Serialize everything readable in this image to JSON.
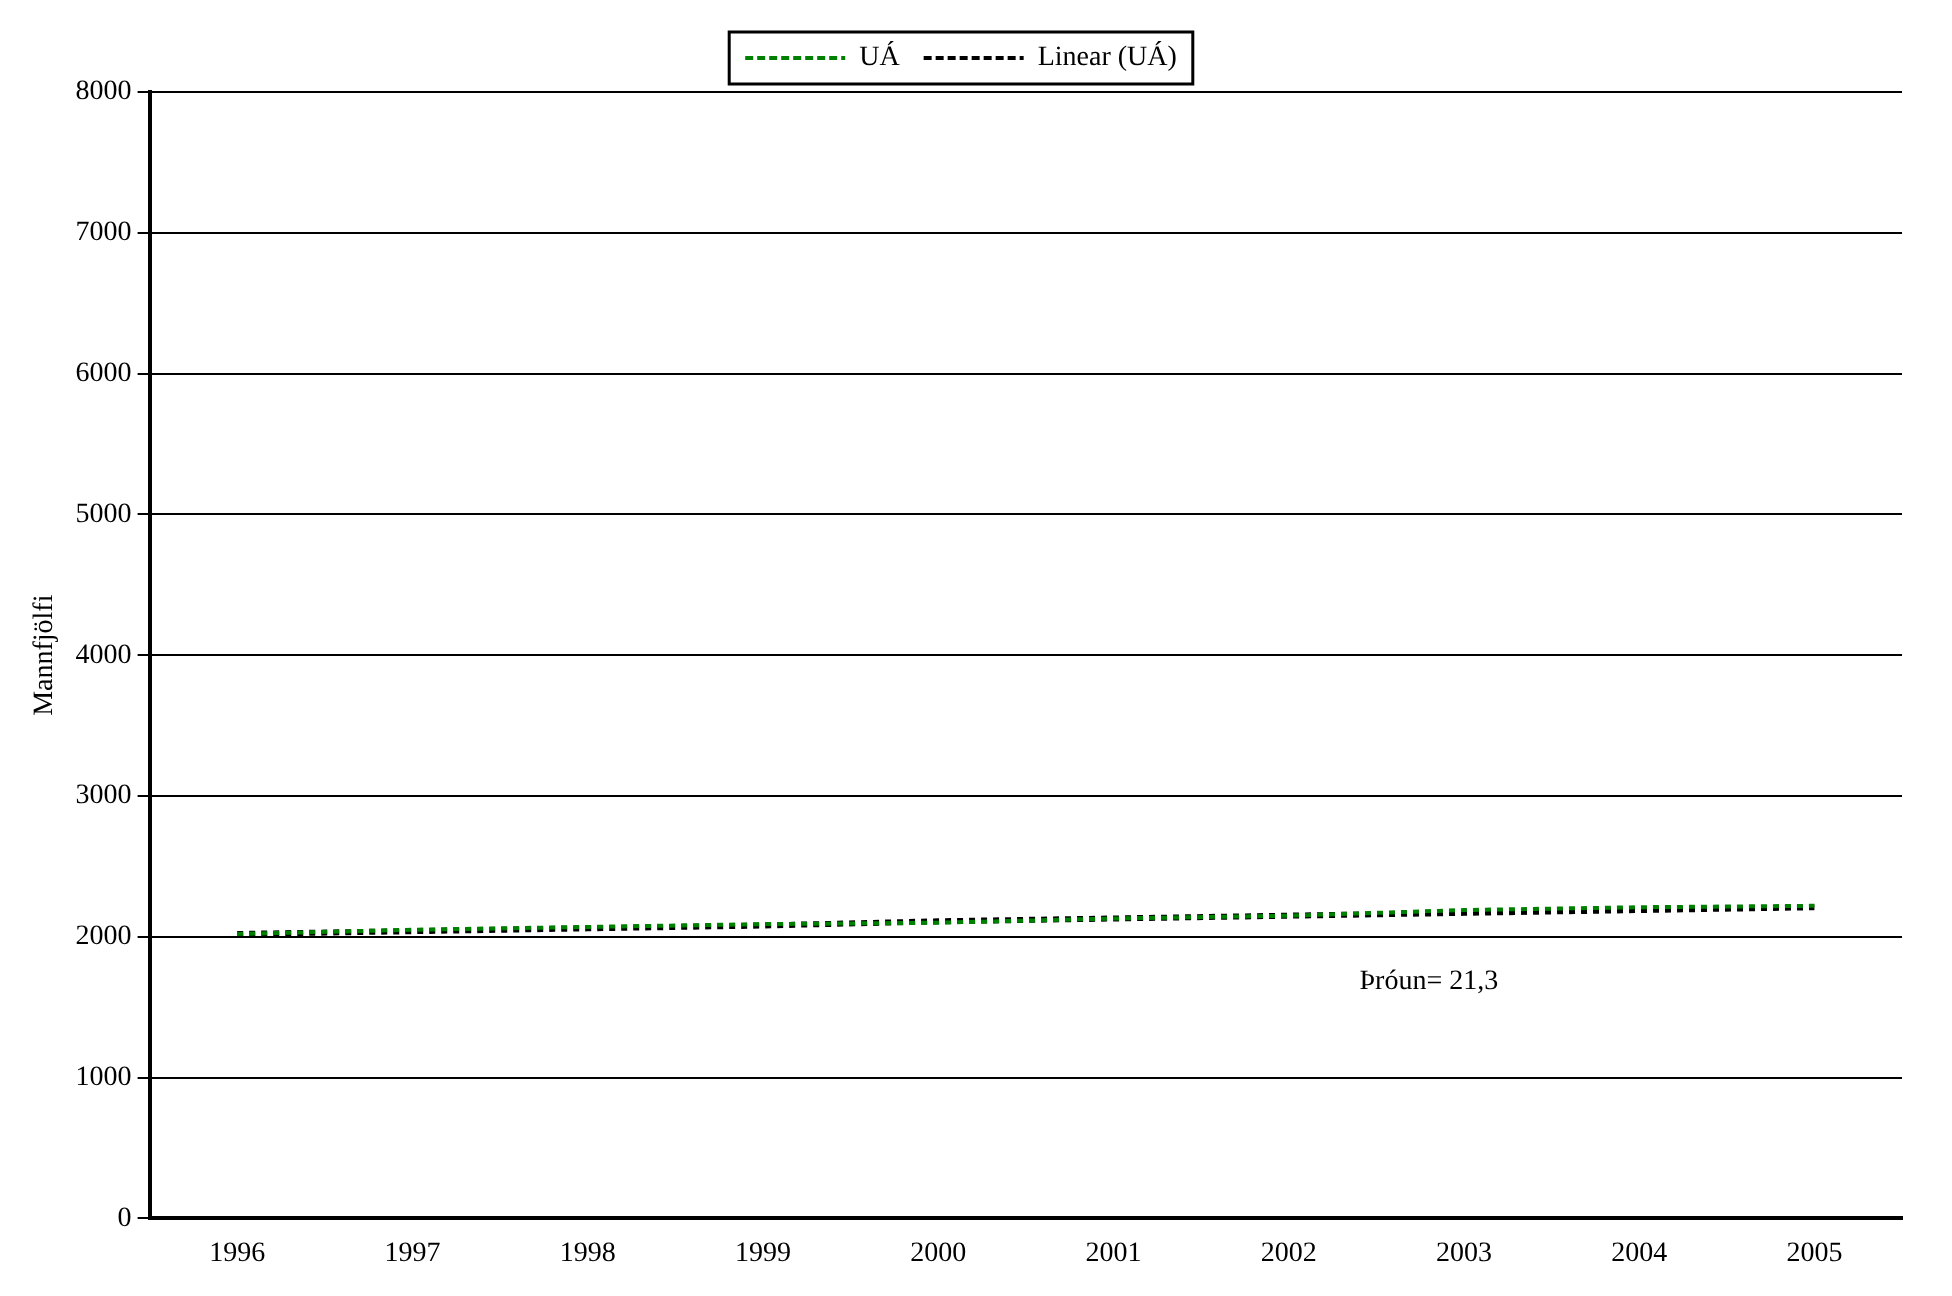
{
  "chart_data": {
    "type": "line",
    "ylabel": "Mannfjölfi",
    "categories": [
      "1996",
      "1997",
      "1998",
      "1999",
      "2000",
      "2001",
      "2002",
      "2003",
      "2004",
      "2005"
    ],
    "series": [
      {
        "name": "UÁ",
        "color": "#008000",
        "line_style": "dashed",
        "values": [
          2020,
          2050,
          2070,
          2090,
          2100,
          2130,
          2150,
          2190,
          2210,
          2220
        ]
      },
      {
        "name": "Linear (UÁ)",
        "color": "#000000",
        "line_style": "dashed",
        "values": [
          2020,
          2040,
          2060,
          2080,
          2110,
          2130,
          2150,
          2170,
          2190,
          2210
        ]
      }
    ],
    "ylim": [
      0,
      8000
    ],
    "yticks": [
      0,
      1000,
      2000,
      3000,
      4000,
      5000,
      6000,
      7000,
      8000
    ],
    "grid": "y",
    "legend": "top",
    "marker": "none",
    "annotations": [
      "Þróun= 21,3"
    ]
  }
}
